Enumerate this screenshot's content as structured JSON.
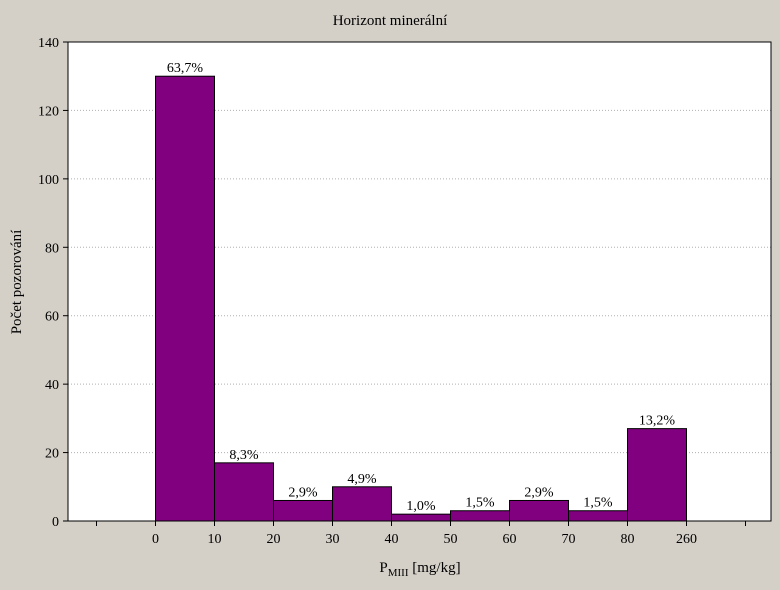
{
  "chart_data": {
    "type": "bar",
    "title": "Horizont minerální",
    "xlabel": {
      "base": "P",
      "subscript": "MIII",
      "rest": " [mg/kg]"
    },
    "ylabel": "Počet pozorování",
    "ylim": [
      0,
      140
    ],
    "yticks": [
      "0",
      "20",
      "40",
      "60",
      "80",
      "100",
      "120",
      "140"
    ],
    "xtick_labels": [
      "0",
      "10",
      "20",
      "30",
      "40",
      "50",
      "60",
      "70",
      "80",
      "260"
    ],
    "grid": true,
    "colors": {
      "bar": "#800080",
      "plot_bg": "#ffffff",
      "page_bg": "#d4d0c8",
      "grid": "#b0b0b0"
    },
    "bins": [
      {
        "from": "0",
        "to": "10",
        "value": 130,
        "label": "63,7%"
      },
      {
        "from": "10",
        "to": "20",
        "value": 17,
        "label": "8,3%"
      },
      {
        "from": "20",
        "to": "30",
        "value": 6,
        "label": "2,9%"
      },
      {
        "from": "30",
        "to": "40",
        "value": 10,
        "label": "4,9%"
      },
      {
        "from": "40",
        "to": "50",
        "value": 2,
        "label": "1,0%"
      },
      {
        "from": "50",
        "to": "60",
        "value": 3,
        "label": "1,5%"
      },
      {
        "from": "60",
        "to": "70",
        "value": 6,
        "label": "2,9%"
      },
      {
        "from": "70",
        "to": "80",
        "value": 3,
        "label": "1,5%"
      },
      {
        "from": "80",
        "to": "260",
        "value": 27,
        "label": "13,2%"
      }
    ]
  }
}
